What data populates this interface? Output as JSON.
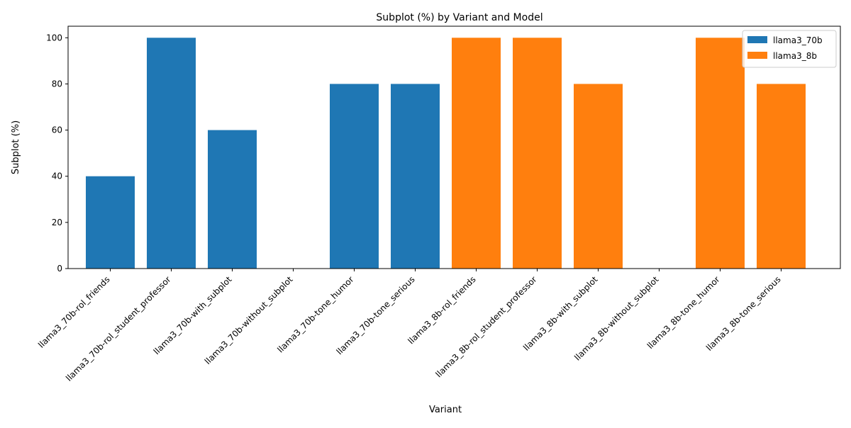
{
  "colors": {
    "llama3_70b": "#1f77b4",
    "llama3_8b": "#ff7f0e"
  },
  "chart_data": {
    "type": "bar",
    "title": "Subplot (%) by Variant and Model",
    "xlabel": "Variant",
    "ylabel": "Subplot (%)",
    "ylim": [
      0,
      105
    ],
    "yticks": [
      0,
      20,
      40,
      60,
      80,
      100
    ],
    "grid": false,
    "legend_position": "top-right",
    "categories": [
      "llama3_70b-rol_friends",
      "llama3_70b-rol_student_professor",
      "llama3_70b-with_subplot",
      "llama3_70b-without_subplot",
      "llama3_70b-tone_humor",
      "llama3_70b-tone_serious",
      "llama3_8b-rol_friends",
      "llama3_8b-rol_student_professor",
      "llama3_8b-with_subplot",
      "llama3_8b-without_subplot",
      "llama3_8b-tone_humor",
      "llama3_8b-tone_serious"
    ],
    "series": [
      {
        "name": "llama3_70b",
        "color": "#1f77b4",
        "values": [
          40,
          100,
          60,
          0,
          80,
          80,
          null,
          null,
          null,
          null,
          null,
          null
        ]
      },
      {
        "name": "llama3_8b",
        "color": "#ff7f0e",
        "values": [
          null,
          null,
          null,
          null,
          null,
          null,
          100,
          100,
          80,
          0,
          100,
          80
        ]
      }
    ]
  }
}
